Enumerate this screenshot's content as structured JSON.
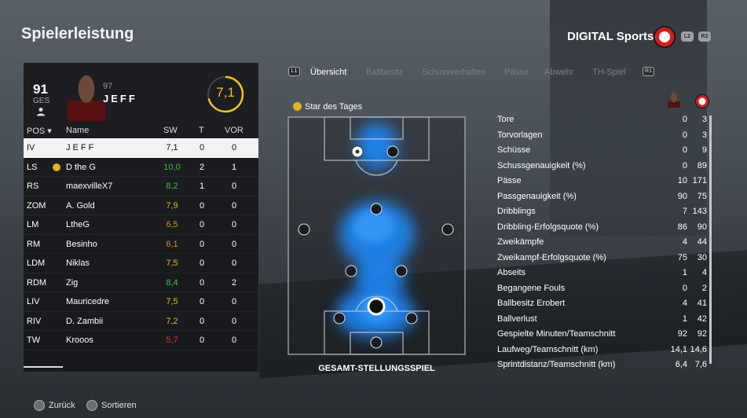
{
  "screen_title": "Spielerleistung",
  "brand": "DIGITAL Sports",
  "hints": {
    "l2": "L2",
    "r2": "R2",
    "l1": "L1",
    "r1": "R1"
  },
  "player": {
    "overall": "91",
    "overall_label": "GES",
    "number": "97",
    "name": "JEFF",
    "rating": "7,1",
    "rating_fraction": 0.71
  },
  "table": {
    "headers": {
      "pos": "POS ▾",
      "name": "Name",
      "sw": "SW",
      "t": "T",
      "vor": "VOR"
    },
    "rows": [
      {
        "pos": "IV",
        "name": "JEFF",
        "sw": "7,1",
        "t": "0",
        "vor": "0",
        "sw_color": "#111111",
        "selected": true,
        "star": false
      },
      {
        "pos": "LS",
        "name": "D the G",
        "sw": "10,0",
        "t": "2",
        "vor": "1",
        "sw_color": "#3cc23c",
        "selected": false,
        "star": true
      },
      {
        "pos": "RS",
        "name": "maexvilleX7",
        "sw": "8,2",
        "t": "1",
        "vor": "0",
        "sw_color": "#3cc23c",
        "selected": false,
        "star": false
      },
      {
        "pos": "ZOM",
        "name": "A. Gold",
        "sw": "7,9",
        "t": "0",
        "vor": "0",
        "sw_color": "#e8b81c",
        "selected": false,
        "star": false
      },
      {
        "pos": "LM",
        "name": "LtheG",
        "sw": "6,5",
        "t": "0",
        "vor": "0",
        "sw_color": "#ee8a1f",
        "selected": false,
        "star": false
      },
      {
        "pos": "RM",
        "name": "Besinho",
        "sw": "6,1",
        "t": "0",
        "vor": "0",
        "sw_color": "#ee8a1f",
        "selected": false,
        "star": false
      },
      {
        "pos": "LDM",
        "name": "Niklas",
        "sw": "7,5",
        "t": "0",
        "vor": "0",
        "sw_color": "#e8b81c",
        "selected": false,
        "star": false
      },
      {
        "pos": "RDM",
        "name": "Zig",
        "sw": "8,4",
        "t": "0",
        "vor": "2",
        "sw_color": "#3cc23c",
        "selected": false,
        "star": false
      },
      {
        "pos": "LIV",
        "name": "Mauricedre",
        "sw": "7,5",
        "t": "0",
        "vor": "0",
        "sw_color": "#e8b81c",
        "selected": false,
        "star": false
      },
      {
        "pos": "RIV",
        "name": "D. Zambii",
        "sw": "7,2",
        "t": "0",
        "vor": "0",
        "sw_color": "#e8b81c",
        "selected": false,
        "star": false
      },
      {
        "pos": "TW",
        "name": "Krooos",
        "sw": "5,7",
        "t": "0",
        "vor": "0",
        "sw_color": "#e0333d",
        "selected": false,
        "star": false
      }
    ]
  },
  "tabs": [
    {
      "label": "Übersicht",
      "active": true
    },
    {
      "label": "Ballbesitz",
      "active": false
    },
    {
      "label": "Schussverhalten",
      "active": false
    },
    {
      "label": "Pässe",
      "active": false
    },
    {
      "label": "Abwehr",
      "active": false
    },
    {
      "label": "TH-Spiel",
      "active": false
    }
  ],
  "star_of_day": "Star des Tages",
  "pitch_label": "GESAMT-STELLUNGSSPIEL",
  "stats": [
    {
      "label": "Tore",
      "player": "0",
      "team": "3"
    },
    {
      "label": "Torvorlagen",
      "player": "0",
      "team": "3"
    },
    {
      "label": "Schüsse",
      "player": "0",
      "team": "9"
    },
    {
      "label": "Schussgenauigkeit (%)",
      "player": "0",
      "team": "89"
    },
    {
      "label": "Pässe",
      "player": "10",
      "team": "171"
    },
    {
      "label": "Passgenauigkeit (%)",
      "player": "90",
      "team": "75"
    },
    {
      "label": "Dribblings",
      "player": "7",
      "team": "143"
    },
    {
      "label": "Dribbling-Erfolgsquote (%)",
      "player": "86",
      "team": "90"
    },
    {
      "label": "Zweikämpfe",
      "player": "4",
      "team": "44"
    },
    {
      "label": "Zweikampf-Erfolgsquote (%)",
      "player": "75",
      "team": "30"
    },
    {
      "label": "Abseits",
      "player": "1",
      "team": "4"
    },
    {
      "label": "Begangene Fouls",
      "player": "0",
      "team": "2"
    },
    {
      "label": "Ballbesitz Erobert",
      "player": "4",
      "team": "41"
    },
    {
      "label": "Ballverlust",
      "player": "1",
      "team": "42"
    },
    {
      "label": "Gespielte Minuten/Teamschnitt",
      "player": "92",
      "team": "92"
    },
    {
      "label": "Laufweg/Teamschnitt (km)",
      "player": "14,1",
      "team": "14,6"
    },
    {
      "label": "Sprintdistanz/Teamschnitt (km)",
      "player": "6,4",
      "team": "7,6"
    }
  ],
  "footer": {
    "back": "Zurück",
    "sort": "Sortieren"
  },
  "colors": {
    "rating_ring": "#f2c31a",
    "heatmap": "#1e8cff",
    "star": "#e3b514"
  }
}
